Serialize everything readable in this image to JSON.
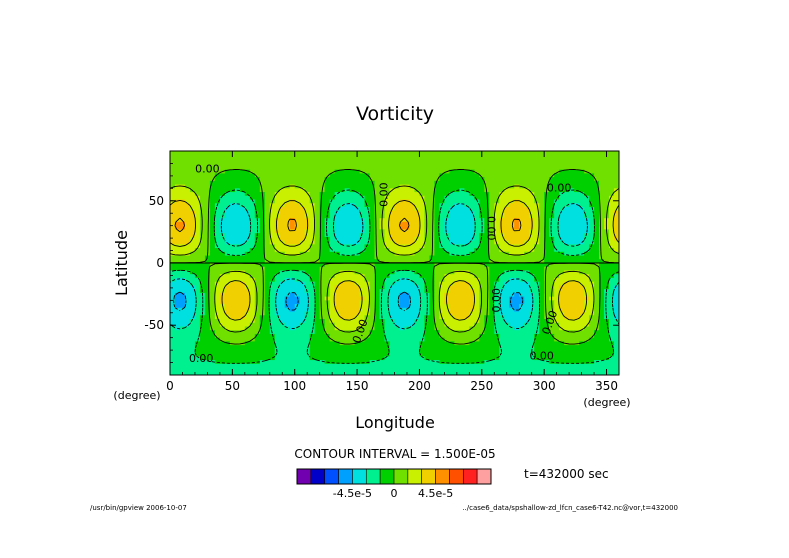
{
  "chart_data": {
    "type": "heatmap",
    "title": "Vorticity",
    "xlabel": "Longitude",
    "ylabel": "Latitude",
    "x_unit": "(degree)",
    "y_unit": "(degree)",
    "xlim": [
      0,
      360
    ],
    "ylim": [
      -90,
      90
    ],
    "x_ticks": [
      0,
      50,
      100,
      150,
      200,
      250,
      300,
      350
    ],
    "y_ticks": [
      -50,
      0,
      50
    ],
    "contour_interval_text": "CONTOUR INTERVAL = 1.500E-05",
    "contour_interval": 1.5e-05,
    "zonal_wavenumber": 4,
    "contour_labels": [
      "0.00",
      "0.00",
      "0.00",
      "0.00",
      "0.00",
      "0.00",
      "0.00",
      "0.00",
      "0.00"
    ],
    "colorbar": {
      "colors": [
        "#7000b0",
        "#0000c8",
        "#0050ff",
        "#00a0ff",
        "#00e0e0",
        "#00f090",
        "#00d000",
        "#70e000",
        "#c8f000",
        "#f0d000",
        "#ff9000",
        "#ff5000",
        "#ff2020",
        "#ffa0a0"
      ],
      "labels": [
        "-4.5e-5",
        "0",
        "4.5e-5"
      ],
      "label_values": [
        -4.5e-05,
        0,
        4.5e-05
      ]
    }
  },
  "time_label": "t=432000 sec",
  "footer": {
    "left": "/usr/bin/gpview  2006-10-07",
    "right": "../case6_data/spshallow-zd_lfcn_case6-T42.nc@vor,t=432000"
  }
}
